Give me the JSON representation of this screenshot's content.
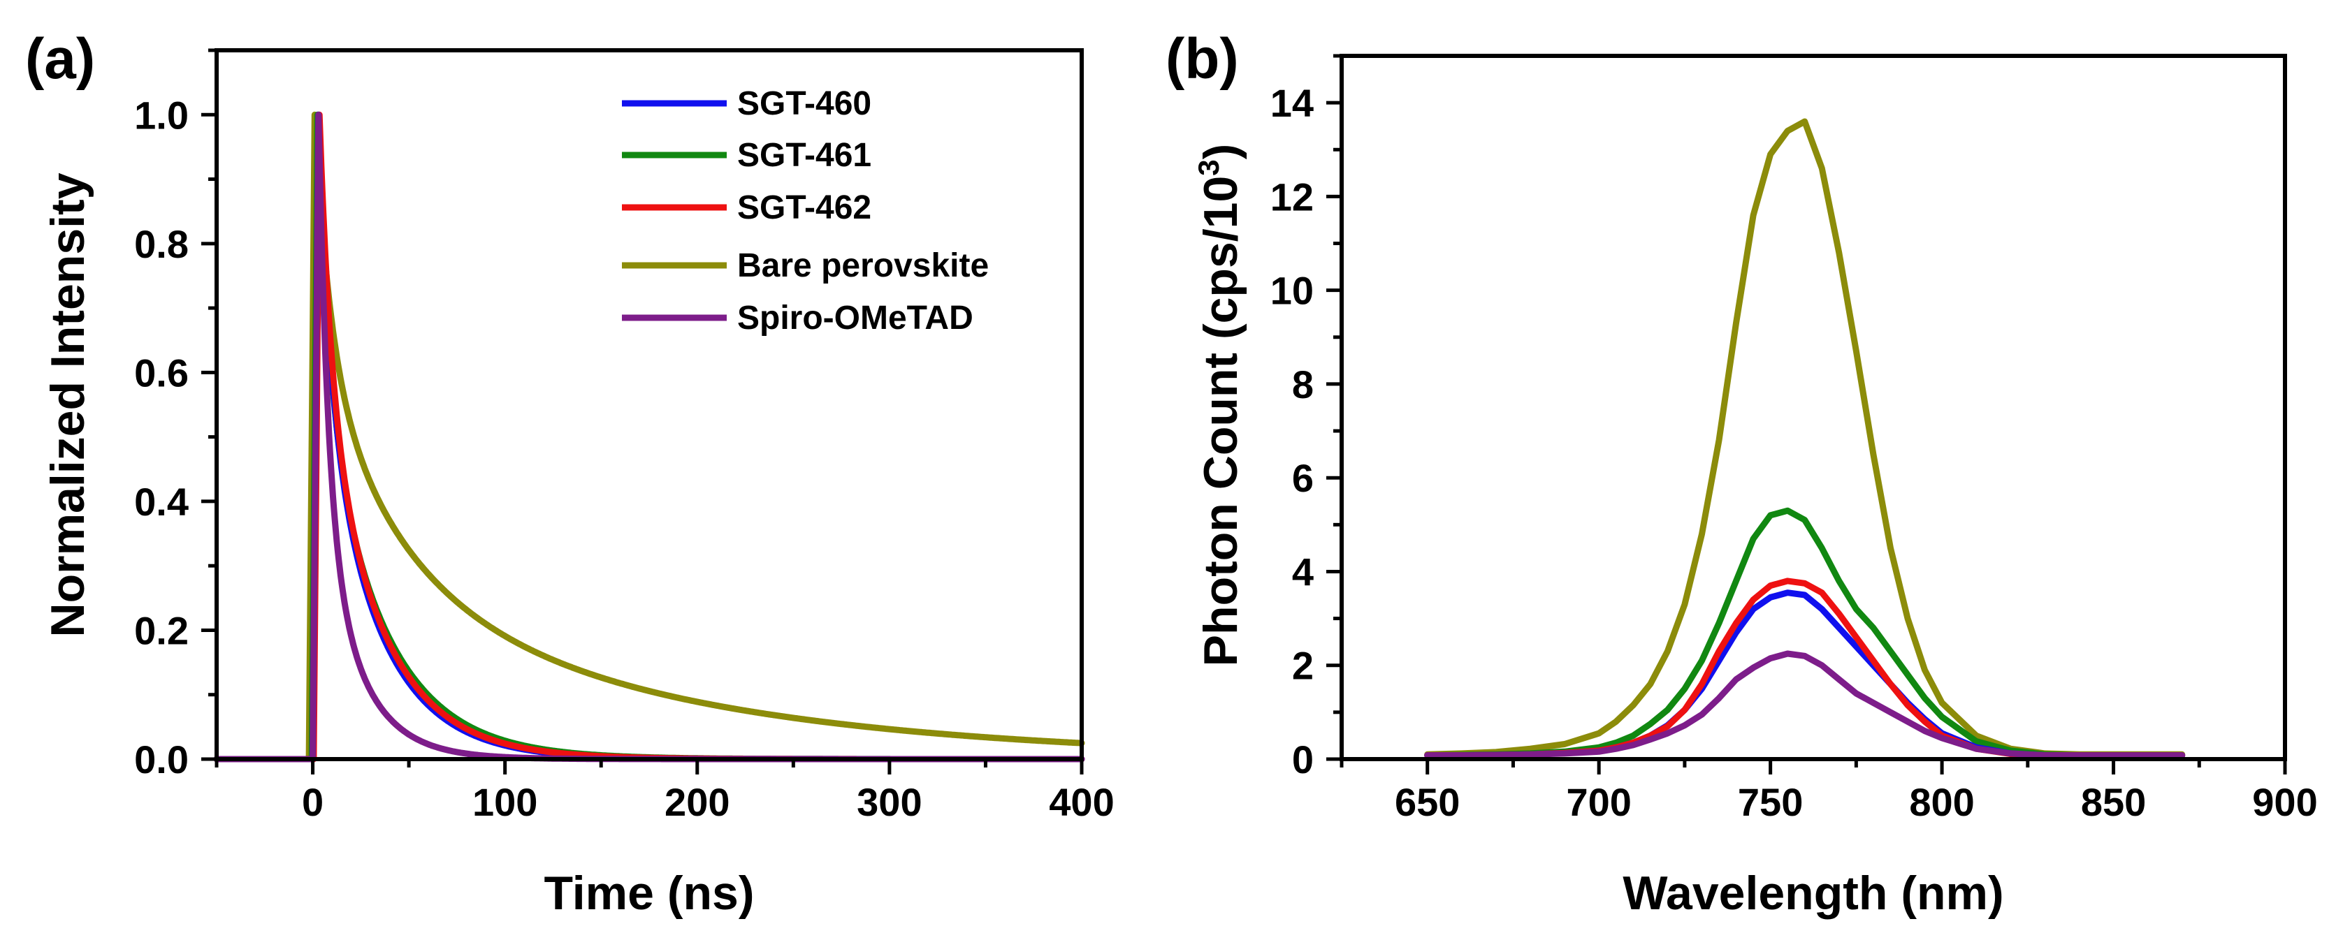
{
  "colors": {
    "SGT-460": "#1010ee",
    "SGT-461": "#118811",
    "SGT-462": "#ee1111",
    "Bare perovskite": "#8c8c0a",
    "Spiro-OMeTAD": "#7d1d8a"
  },
  "chart_data": [
    {
      "type": "line",
      "panel_label": "(a)",
      "title": "",
      "xlabel": "Time (ns)",
      "ylabel": "Normalized Intensity",
      "xlim": [
        -50,
        400
      ],
      "ylim": [
        0,
        1.1
      ],
      "xticks": [
        0,
        100,
        200,
        300,
        400
      ],
      "xtick_labels": [
        "0",
        "100",
        "200",
        "300",
        "400"
      ],
      "yticks": [
        0.0,
        0.2,
        0.4,
        0.6,
        0.8,
        1.0
      ],
      "ytick_labels": [
        "0.0",
        "0.2",
        "0.4",
        "0.6",
        "0.8",
        "1.0"
      ],
      "legend": "top-right",
      "legend_entries": [
        "SGT-460",
        "SGT-461",
        "SGT-462",
        "Bare perovskite",
        "Spiro-OMeTAD"
      ],
      "series": [
        {
          "name": "Bare perovskite",
          "t0": 1.0,
          "components": [
            [
              0.35,
              8
            ],
            [
              0.35,
              40
            ],
            [
              0.3,
              160
            ]
          ]
        },
        {
          "name": "SGT-461",
          "t0": 2.5,
          "components": [
            [
              0.4,
              6
            ],
            [
              0.6,
              32
            ]
          ]
        },
        {
          "name": "SGT-460",
          "t0": 3.0,
          "components": [
            [
              0.4,
              6
            ],
            [
              0.6,
              29
            ]
          ]
        },
        {
          "name": "SGT-462",
          "t0": 3.5,
          "components": [
            [
              0.4,
              6
            ],
            [
              0.6,
              30
            ]
          ]
        },
        {
          "name": "Spiro-OMeTAD",
          "t0": 3.0,
          "components": [
            [
              0.6,
              5
            ],
            [
              0.4,
              20
            ]
          ]
        }
      ]
    },
    {
      "type": "line",
      "panel_label": "(b)",
      "title": "",
      "xlabel": "Wavelength (nm)",
      "ylabel_main": "Photon Count (cps/10",
      "ylabel_sup": "3",
      "ylabel_end": ")",
      "xlim": [
        625,
        900
      ],
      "ylim": [
        0,
        15
      ],
      "xticks": [
        650,
        700,
        750,
        800,
        850,
        900
      ],
      "xtick_labels": [
        "650",
        "700",
        "750",
        "800",
        "850",
        "900"
      ],
      "yticks": [
        0,
        2,
        4,
        6,
        8,
        10,
        12,
        14
      ],
      "ytick_labels": [
        "0",
        "2",
        "4",
        "6",
        "8",
        "10",
        "12",
        "14"
      ],
      "x": [
        650,
        660,
        670,
        680,
        690,
        700,
        705,
        710,
        715,
        720,
        725,
        730,
        735,
        740,
        745,
        750,
        755,
        760,
        765,
        770,
        775,
        780,
        785,
        790,
        795,
        800,
        810,
        820,
        830,
        840,
        850,
        860,
        870
      ],
      "series": [
        {
          "name": "Bare perovskite",
          "values": [
            0.1,
            0.12,
            0.15,
            0.22,
            0.32,
            0.55,
            0.8,
            1.15,
            1.6,
            2.3,
            3.3,
            4.8,
            6.8,
            9.3,
            11.6,
            12.9,
            13.4,
            13.6,
            12.6,
            10.8,
            8.7,
            6.5,
            4.5,
            3.0,
            1.9,
            1.2,
            0.5,
            0.22,
            0.12,
            0.1,
            0.1,
            0.1,
            0.1
          ]
        },
        {
          "name": "SGT-461",
          "values": [
            0.08,
            0.09,
            0.1,
            0.12,
            0.16,
            0.25,
            0.35,
            0.5,
            0.75,
            1.05,
            1.5,
            2.1,
            2.9,
            3.8,
            4.7,
            5.2,
            5.3,
            5.1,
            4.5,
            3.8,
            3.2,
            2.8,
            2.3,
            1.8,
            1.3,
            0.9,
            0.38,
            0.18,
            0.1,
            0.08,
            0.08,
            0.08,
            0.08
          ]
        },
        {
          "name": "SGT-460",
          "values": [
            0.08,
            0.08,
            0.09,
            0.1,
            0.13,
            0.18,
            0.25,
            0.35,
            0.5,
            0.72,
            1.05,
            1.5,
            2.1,
            2.7,
            3.2,
            3.45,
            3.55,
            3.5,
            3.2,
            2.8,
            2.4,
            2.0,
            1.6,
            1.2,
            0.85,
            0.55,
            0.25,
            0.12,
            0.08,
            0.08,
            0.08,
            0.08,
            0.08
          ]
        },
        {
          "name": "SGT-462",
          "values": [
            0.08,
            0.08,
            0.09,
            0.1,
            0.13,
            0.18,
            0.25,
            0.35,
            0.5,
            0.7,
            1.05,
            1.6,
            2.3,
            2.9,
            3.4,
            3.7,
            3.8,
            3.75,
            3.55,
            3.1,
            2.6,
            2.1,
            1.6,
            1.15,
            0.8,
            0.5,
            0.22,
            0.11,
            0.08,
            0.08,
            0.08,
            0.08,
            0.08
          ]
        },
        {
          "name": "Spiro-OMeTAD",
          "values": [
            0.08,
            0.08,
            0.09,
            0.1,
            0.12,
            0.16,
            0.22,
            0.3,
            0.42,
            0.55,
            0.72,
            0.95,
            1.3,
            1.7,
            1.95,
            2.15,
            2.25,
            2.2,
            2.0,
            1.7,
            1.4,
            1.2,
            1.0,
            0.8,
            0.6,
            0.45,
            0.22,
            0.12,
            0.08,
            0.08,
            0.08,
            0.08,
            0.08
          ]
        }
      ]
    }
  ]
}
